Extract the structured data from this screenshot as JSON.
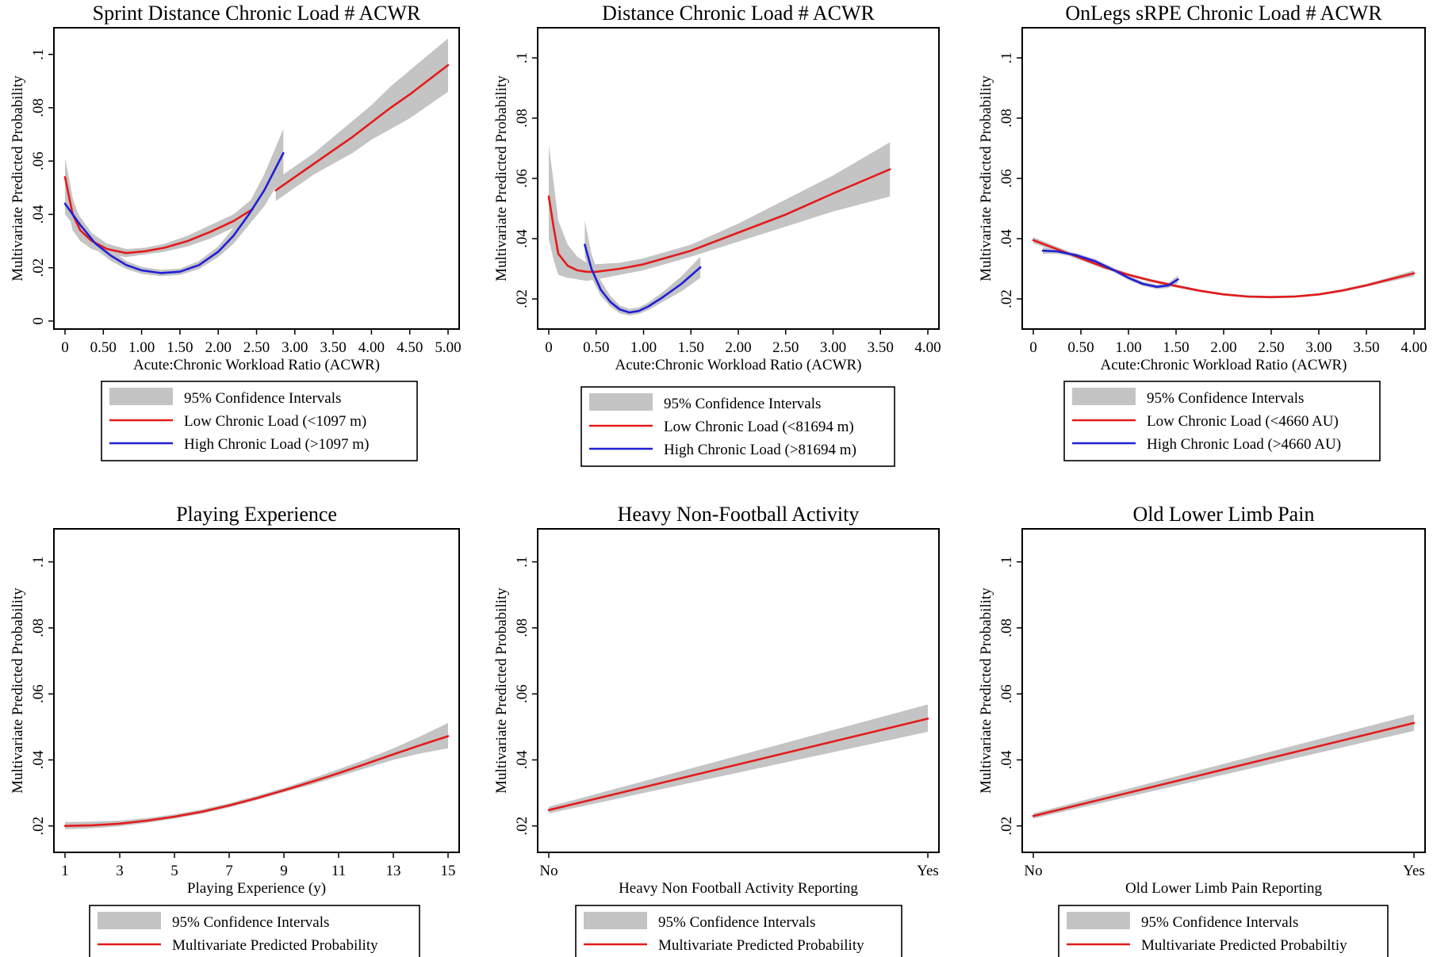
{
  "chart_data": [
    {
      "type": "line",
      "title": "Sprint Distance Chronic Load # ACWR",
      "xlabel": "Acute:Chronic Workload Ratio (ACWR)",
      "ylabel": "Multivariate Predicted Probability",
      "xlim": [
        0,
        5.0
      ],
      "ylim": [
        -0.003,
        0.11
      ],
      "xticks": [
        0,
        0.5,
        1.0,
        1.5,
        2.0,
        2.5,
        3.0,
        3.5,
        4.0,
        4.5,
        5.0
      ],
      "xtick_labels": [
        "0",
        "0.50",
        "1.00",
        "1.50",
        "2.00",
        "2.50",
        "3.00",
        "3.50",
        "4.00",
        "4.50",
        "5.00"
      ],
      "yticks": [
        0,
        0.02,
        0.04,
        0.06,
        0.08,
        0.1
      ],
      "ytick_labels": [
        "0",
        ".02",
        ".04",
        ".06",
        ".08",
        ".1"
      ],
      "legend": [
        "95% Confidence Intervals",
        "Low Chronic Load (<1097 m)",
        "High Chronic Load (>1097 m)"
      ],
      "series": [
        {
          "name": "Low Chronic Load (<1097 m)",
          "color": "#e41a1c",
          "segments": [
            {
              "x": [
                0.0,
                0.05,
                0.1,
                0.2,
                0.35,
                0.55,
                0.8,
                1.05,
                1.3,
                1.6,
                1.9,
                2.2,
                2.45
              ],
              "y": [
                0.054,
                0.047,
                0.04,
                0.034,
                0.03,
                0.027,
                0.0255,
                0.0262,
                0.0275,
                0.03,
                0.0335,
                0.0375,
                0.042
              ],
              "lo": [
                0.047,
                0.04,
                0.034,
                0.03,
                0.027,
                0.025,
                0.024,
                0.025,
                0.026,
                0.028,
                0.031,
                0.035,
                0.038
              ],
              "hi": [
                0.061,
                0.054,
                0.046,
                0.038,
                0.033,
                0.029,
                0.027,
                0.0275,
                0.029,
                0.032,
                0.036,
                0.04,
                0.046
              ]
            },
            {
              "x": [
                2.75,
                3.0,
                3.25,
                3.5,
                3.75,
                4.0,
                4.25,
                4.5,
                4.75,
                5.0
              ],
              "y": [
                0.049,
                0.054,
                0.059,
                0.064,
                0.069,
                0.0745,
                0.08,
                0.085,
                0.0905,
                0.096
              ],
              "lo": [
                0.045,
                0.05,
                0.055,
                0.059,
                0.063,
                0.068,
                0.072,
                0.076,
                0.081,
                0.086
              ],
              "hi": [
                0.053,
                0.058,
                0.063,
                0.069,
                0.075,
                0.081,
                0.088,
                0.094,
                0.1,
                0.106
              ]
            }
          ]
        },
        {
          "name": "High Chronic Load (>1097 m)",
          "color": "#1f1fd6",
          "segments": [
            {
              "x": [
                0.0,
                0.2,
                0.4,
                0.6,
                0.8,
                1.0,
                1.25,
                1.5,
                1.75,
                2.0,
                2.2,
                2.4,
                2.6,
                2.85
              ],
              "y": [
                0.044,
                0.036,
                0.029,
                0.0245,
                0.021,
                0.019,
                0.018,
                0.0185,
                0.021,
                0.026,
                0.032,
                0.04,
                0.049,
                0.063
              ],
              "lo": [
                0.04,
                0.033,
                0.027,
                0.0225,
                0.0195,
                0.0177,
                0.0168,
                0.0173,
                0.0195,
                0.024,
                0.029,
                0.036,
                0.043,
                0.055
              ],
              "hi": [
                0.048,
                0.039,
                0.031,
                0.0265,
                0.0225,
                0.0203,
                0.0192,
                0.0197,
                0.0225,
                0.028,
                0.035,
                0.044,
                0.055,
                0.072
              ]
            }
          ]
        }
      ]
    },
    {
      "type": "line",
      "title": "Distance Chronic Load # ACWR",
      "xlabel": "Acute:Chronic Workload Ratio (ACWR)",
      "ylabel": "Multivariate Predicted Probability",
      "xlim": [
        0,
        4.0
      ],
      "ylim": [
        0.01,
        0.11
      ],
      "xticks": [
        0,
        0.5,
        1.0,
        1.5,
        2.0,
        2.5,
        3.0,
        3.5,
        4.0
      ],
      "xtick_labels": [
        "0",
        "0.50",
        "1.00",
        "1.50",
        "2.00",
        "2.50",
        "3.00",
        "3.50",
        "4.00"
      ],
      "yticks": [
        0.02,
        0.04,
        0.06,
        0.08,
        0.1
      ],
      "ytick_labels": [
        ".02",
        ".04",
        ".06",
        ".08",
        ".1"
      ],
      "legend": [
        "95% Confidence Intervals",
        "Low Chronic Load (<81694 m)",
        "High Chronic Load (>81694 m)"
      ],
      "series": [
        {
          "name": "Low Chronic Load (<81694 m)",
          "color": "#e41a1c",
          "segments": [
            {
              "x": [
                0.0,
                0.05,
                0.1,
                0.2,
                0.3,
                0.4,
                0.5,
                0.75,
                1.0,
                1.5,
                2.0,
                2.5,
                3.0,
                3.6
              ],
              "y": [
                0.054,
                0.044,
                0.035,
                0.031,
                0.0295,
                0.029,
                0.029,
                0.03,
                0.0315,
                0.036,
                0.042,
                0.048,
                0.055,
                0.063
              ],
              "lo": [
                0.04,
                0.033,
                0.028,
                0.027,
                0.0265,
                0.026,
                0.0265,
                0.028,
                0.0295,
                0.034,
                0.039,
                0.044,
                0.049,
                0.054
              ],
              "hi": [
                0.071,
                0.059,
                0.046,
                0.038,
                0.034,
                0.032,
                0.0315,
                0.032,
                0.0335,
                0.038,
                0.045,
                0.053,
                0.061,
                0.072
              ]
            }
          ]
        },
        {
          "name": "High Chronic Load (>81694 m)",
          "color": "#1f1fd6",
          "segments": [
            {
              "x": [
                0.38,
                0.45,
                0.55,
                0.65,
                0.75,
                0.85,
                0.95,
                1.05,
                1.2,
                1.4,
                1.6
              ],
              "y": [
                0.038,
                0.03,
                0.023,
                0.019,
                0.0165,
                0.0155,
                0.016,
                0.0175,
                0.0205,
                0.025,
                0.0305
              ],
              "lo": [
                0.034,
                0.027,
                0.021,
                0.0175,
                0.0152,
                0.0145,
                0.015,
                0.0163,
                0.019,
                0.0225,
                0.027
              ],
              "hi": [
                0.046,
                0.035,
                0.026,
                0.021,
                0.0178,
                0.0167,
                0.0172,
                0.0188,
                0.0222,
                0.0275,
                0.034
              ]
            }
          ]
        }
      ]
    },
    {
      "type": "line",
      "title": "OnLegs sRPE Chronic Load # ACWR",
      "xlabel": "Acute:Chronic Workload Ratio (ACWR)",
      "ylabel": "Multivariate Predicted Probability",
      "xlim": [
        0,
        4.0
      ],
      "ylim": [
        0.01,
        0.11
      ],
      "xticks": [
        0,
        0.5,
        1.0,
        1.5,
        2.0,
        2.5,
        3.0,
        3.5,
        4.0
      ],
      "xtick_labels": [
        "0",
        "0.50",
        "1.00",
        "1.50",
        "2.00",
        "2.50",
        "3.00",
        "3.50",
        "4.00"
      ],
      "yticks": [
        0.02,
        0.04,
        0.06,
        0.08,
        0.1
      ],
      "ytick_labels": [
        ".02",
        ".04",
        ".06",
        ".08",
        ".1"
      ],
      "legend": [
        "95% Confidence Intervals",
        "Low Chronic Load (<4660 AU)",
        "High Chronic Load (>4660 AU)"
      ],
      "series": [
        {
          "name": "Low Chronic Load (<4660 AU)",
          "color": "#e41a1c",
          "segments": [
            {
              "x": [
                0.0,
                0.25,
                0.5,
                0.75,
                1.0,
                1.25,
                1.5,
                1.75,
                2.0,
                2.25,
                2.5,
                2.75,
                3.0,
                3.25,
                3.5,
                3.75,
                4.0
              ],
              "y": [
                0.0395,
                0.0365,
                0.0335,
                0.0305,
                0.028,
                0.026,
                0.0243,
                0.0227,
                0.0215,
                0.0208,
                0.0206,
                0.0208,
                0.0215,
                0.0228,
                0.0245,
                0.0265,
                0.0285
              ],
              "lo": [
                0.0385,
                0.0357,
                0.0328,
                0.0299,
                0.0275,
                0.0255,
                0.0238,
                0.0223,
                0.0211,
                0.0204,
                0.0202,
                0.0204,
                0.0211,
                0.0223,
                0.024,
                0.0258,
                0.0275
              ],
              "hi": [
                0.0405,
                0.0373,
                0.0342,
                0.0311,
                0.0285,
                0.0265,
                0.0248,
                0.0231,
                0.0219,
                0.0212,
                0.021,
                0.0212,
                0.0219,
                0.0233,
                0.025,
                0.0272,
                0.0295
              ]
            }
          ]
        },
        {
          "name": "High Chronic Load (>4660 AU)",
          "color": "#1f1fd6",
          "segments": [
            {
              "x": [
                0.1,
                0.25,
                0.45,
                0.65,
                0.85,
                1.0,
                1.15,
                1.3,
                1.42,
                1.52
              ],
              "y": [
                0.036,
                0.0358,
                0.0345,
                0.0325,
                0.0295,
                0.027,
                0.025,
                0.024,
                0.0245,
                0.0265
              ],
              "lo": [
                0.035,
                0.035,
                0.0338,
                0.0318,
                0.0288,
                0.0263,
                0.0243,
                0.0233,
                0.0236,
                0.0252
              ],
              "hi": [
                0.037,
                0.0366,
                0.0352,
                0.0332,
                0.0302,
                0.0277,
                0.0257,
                0.0247,
                0.0254,
                0.0278
              ]
            }
          ]
        }
      ]
    },
    {
      "type": "line",
      "title": "Playing Experience",
      "xlabel": "Playing Experience (y)",
      "ylabel": "Multivariate Predicted Probability",
      "xlim": [
        1,
        15
      ],
      "ylim": [
        0.012,
        0.11
      ],
      "xticks": [
        1,
        3,
        5,
        7,
        9,
        11,
        13,
        15
      ],
      "xtick_labels": [
        "1",
        "3",
        "5",
        "7",
        "9",
        "11",
        "13",
        "15"
      ],
      "yticks": [
        0.02,
        0.04,
        0.06,
        0.08,
        0.1
      ],
      "ytick_labels": [
        ".02",
        ".04",
        ".06",
        ".08",
        ".1"
      ],
      "legend": [
        "95% Confidence Intervals",
        "Multivariate Predicted Probability"
      ],
      "series": [
        {
          "name": "Multivariate Predicted Probability",
          "color": "#e41a1c",
          "segments": [
            {
              "x": [
                1,
                2,
                3,
                4,
                5,
                6,
                7,
                8,
                9,
                10,
                11,
                12,
                13,
                14,
                15
              ],
              "y": [
                0.02,
                0.0202,
                0.0207,
                0.0216,
                0.0228,
                0.0243,
                0.0262,
                0.0284,
                0.0308,
                0.0333,
                0.036,
                0.0388,
                0.0417,
                0.0445,
                0.0472
              ],
              "lo": [
                0.019,
                0.0193,
                0.0199,
                0.0209,
                0.0222,
                0.0237,
                0.0256,
                0.0278,
                0.0302,
                0.0325,
                0.035,
                0.0375,
                0.04,
                0.042,
                0.0435
              ],
              "hi": [
                0.0212,
                0.0213,
                0.0216,
                0.0224,
                0.0235,
                0.025,
                0.0269,
                0.0291,
                0.0315,
                0.0343,
                0.0372,
                0.0402,
                0.0435,
                0.0472,
                0.0512
              ]
            }
          ]
        }
      ]
    },
    {
      "type": "line",
      "title": "Heavy Non-Football Activity",
      "xlabel": "Heavy Non Football Activity Reporting",
      "ylabel": "Multivariate Predicted Probability",
      "xlim": [
        0,
        1
      ],
      "ylim": [
        0.012,
        0.11
      ],
      "xticks": [
        0,
        1
      ],
      "xtick_labels": [
        "No",
        "Yes"
      ],
      "yticks": [
        0.02,
        0.04,
        0.06,
        0.08,
        0.1
      ],
      "ytick_labels": [
        ".02",
        ".04",
        ".06",
        ".08",
        ".1"
      ],
      "legend": [
        "95% Confidence Intervals",
        "Multivariate Predicted Probability"
      ],
      "series": [
        {
          "name": "Multivariate Predicted Probability",
          "color": "#e41a1c",
          "segments": [
            {
              "x": [
                0,
                1
              ],
              "y": [
                0.0248,
                0.0525
              ],
              "lo": [
                0.0238,
                0.0485
              ],
              "hi": [
                0.0258,
                0.0568
              ]
            }
          ]
        }
      ]
    },
    {
      "type": "line",
      "title": "Old Lower Limb Pain",
      "xlabel": "Old Lower Limb Pain Reporting",
      "ylabel": "Multivariate Predicted Probability",
      "xlim": [
        0,
        1
      ],
      "ylim": [
        0.012,
        0.11
      ],
      "xticks": [
        0,
        1
      ],
      "xtick_labels": [
        "No",
        "Yes"
      ],
      "yticks": [
        0.02,
        0.04,
        0.06,
        0.08,
        0.1
      ],
      "ytick_labels": [
        ".02",
        ".04",
        ".06",
        ".08",
        ".1"
      ],
      "legend": [
        "95% Confidence Intervals",
        "Multivariate Predicted Probabiltiy"
      ],
      "series": [
        {
          "name": "Multivariate Predicted Probabiltiy",
          "color": "#e41a1c",
          "segments": [
            {
              "x": [
                0,
                1
              ],
              "y": [
                0.023,
                0.0512
              ],
              "lo": [
                0.0222,
                0.0488
              ],
              "hi": [
                0.0238,
                0.0538
              ]
            }
          ]
        }
      ]
    }
  ]
}
